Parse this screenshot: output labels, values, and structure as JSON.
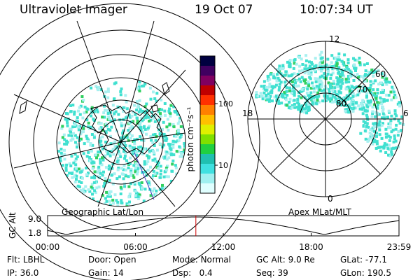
{
  "header": {
    "instrument": "Ultraviolet Imager",
    "date": "19 Oct 07",
    "time": "10:07:34 UT"
  },
  "geo_panel": {
    "label": "Geographic Lat/Lon"
  },
  "apex_panel": {
    "label": "Apex MLat/MLT",
    "mlt_labels": {
      "top": "12",
      "right": "6",
      "bottom": "0",
      "left": "18"
    },
    "lat_labels": [
      "80",
      "70",
      "60"
    ]
  },
  "colorbar": {
    "unit": "photon cm⁻²s⁻¹",
    "ticks": [
      {
        "label": "100",
        "value": 100
      },
      {
        "label": "10",
        "value": 10
      }
    ],
    "colors": [
      "#000040",
      "#400060",
      "#800060",
      "#c00000",
      "#ff3000",
      "#ff8000",
      "#ffc000",
      "#e0f000",
      "#80e000",
      "#20d040",
      "#20c0b0",
      "#40e0e0",
      "#a0f0f0",
      "#e0ffff"
    ]
  },
  "altitude_plot": {
    "ylabel": "GC Alt",
    "yticks": [
      "9.0",
      "1.8"
    ],
    "xticks": [
      "00:00",
      "06:00",
      "12:00",
      "18:00",
      "23:59"
    ],
    "marker_time_hours": 10.126
  },
  "info": {
    "filter_label": "Flt:",
    "filter_value": "LBHL",
    "ip_label": "IP:",
    "ip_value": "36.0",
    "door_label": "Door:",
    "door_value": "Open",
    "gain_label": "Gain:",
    "gain_value": "14",
    "mode_label": "Mode:",
    "mode_value": "Normal",
    "dsp_label": "Dsp:",
    "dsp_value": "0.4",
    "gcalt_label": "GC Alt:",
    "gcalt_value": "9.0 Re",
    "seq_label": "Seq:",
    "seq_value": "39",
    "glat_label": "GLat:",
    "glat_value": "-77.1",
    "glon_label": "GLon:",
    "glon_value": "190.5"
  },
  "colors": {
    "aurora": "#40e0d0",
    "aurora_light": "#a8f0f0",
    "aurora_green": "#30d060",
    "marker": "#d00000",
    "track": "#4040c0"
  }
}
